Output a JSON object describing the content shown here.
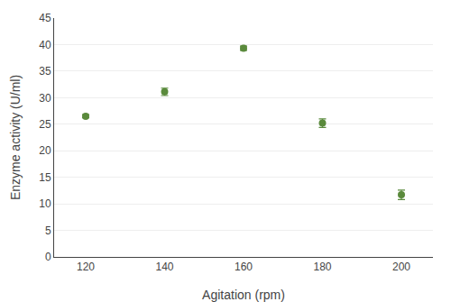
{
  "chart_data": {
    "type": "scatter",
    "x": [
      120,
      140,
      160,
      180,
      200
    ],
    "values": [
      26.5,
      31.1,
      39.3,
      25.2,
      11.7
    ],
    "yerr": [
      0.3,
      0.7,
      0.4,
      0.8,
      0.9
    ],
    "xlabel": "Agitation (rpm)",
    "ylabel": "Enzyme activity (U/ml)",
    "xlim": [
      112,
      208
    ],
    "ylim": [
      0,
      45
    ],
    "xticks": [
      120,
      140,
      160,
      180,
      200
    ],
    "yticks": [
      0,
      5,
      10,
      15,
      20,
      25,
      30,
      35,
      40,
      45
    ],
    "color": "#5a8a3c",
    "marker": "circle",
    "grid": "y"
  }
}
